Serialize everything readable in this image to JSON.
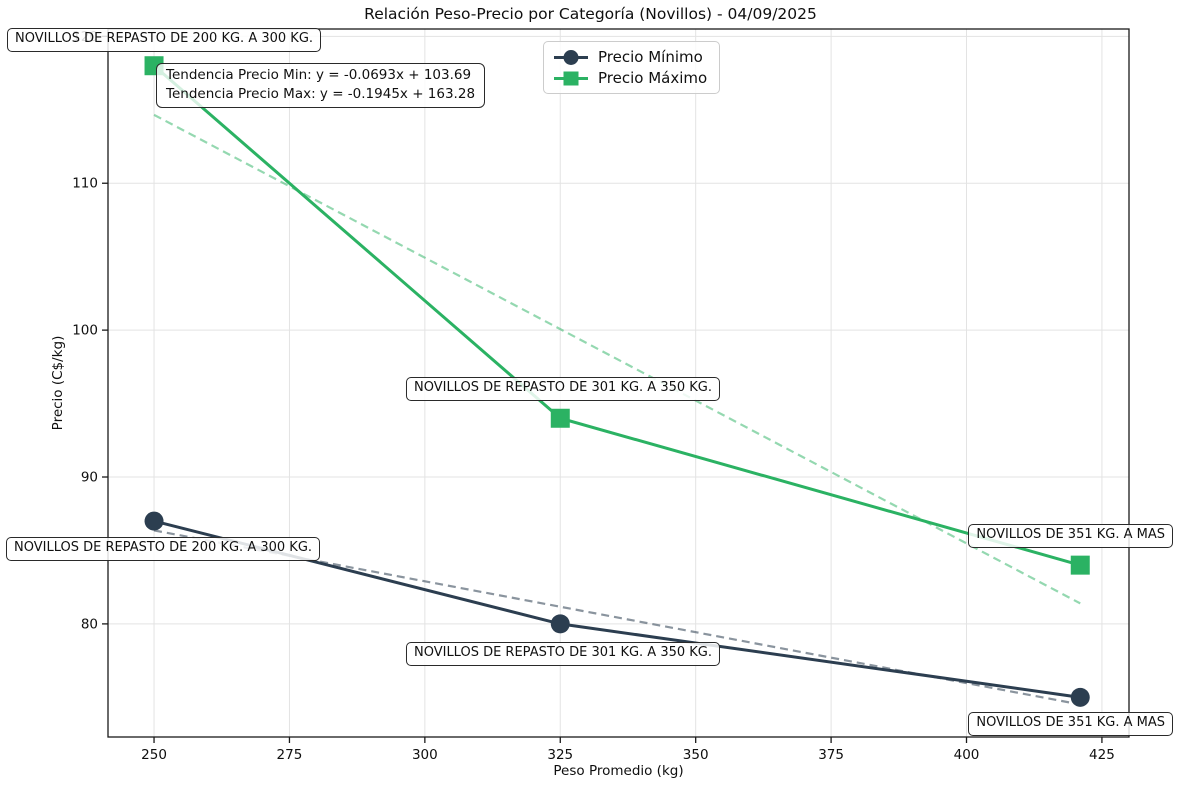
{
  "title": "Relación Peso-Precio por Categoría (Novillos) - 04/09/2025",
  "chart_data": {
    "type": "line",
    "title": "Relación Peso-Precio por Categoría (Novillos) - 04/09/2025",
    "xlabel": "Peso Promedio (kg)",
    "ylabel": "Precio (C$/kg)",
    "xlim": [
      241.5,
      430.0
    ],
    "ylim": [
      72.3,
      120.5
    ],
    "xticks": [
      250,
      275,
      300,
      325,
      350,
      375,
      400,
      425
    ],
    "yticks": [
      80,
      90,
      100,
      110,
      120
    ],
    "grid": true,
    "legend_position": "upper center",
    "categories": [
      "NOVILLOS DE REPASTO DE 200 KG. A 300 KG.",
      "NOVILLOS DE REPASTO DE 301 KG. A 350 KG.",
      "NOVILLOS DE 351 KG. A MAS"
    ],
    "x": [
      250,
      325,
      421
    ],
    "series": [
      {
        "name": "Precio Mínimo",
        "marker": "circle",
        "color": "#2c3e50",
        "x": [
          250,
          325,
          421
        ],
        "values": [
          87,
          80,
          75
        ],
        "point_labels": [
          "NOVILLOS DE REPASTO DE 200 KG. A 300 KG.",
          "NOVILLOS DE REPASTO DE 301 KG. A 350 KG.",
          "NOVILLOS DE 351 KG. A MAS"
        ]
      },
      {
        "name": "Precio Máximo",
        "marker": "square",
        "color": "#2bb263",
        "x": [
          250,
          325,
          421
        ],
        "values": [
          118,
          94,
          84
        ],
        "point_labels": [
          "NOVILLOS DE REPASTO DE 200 KG. A 300 KG.",
          "NOVILLOS DE REPASTO DE 301 KG. A 350 KG.",
          "NOVILLOS DE 351 KG. A MAS"
        ]
      }
    ],
    "trendlines": [
      {
        "name": "Tendencia Precio Min",
        "slope": -0.0693,
        "intercept": 103.69,
        "color": "#2c3e50",
        "opacity": 0.55,
        "x_range": [
          250,
          421
        ]
      },
      {
        "name": "Tendencia Precio Max",
        "slope": -0.1945,
        "intercept": 163.28,
        "color": "#2bb263",
        "opacity": 0.5,
        "x_range": [
          250,
          421
        ]
      }
    ],
    "annotation_box": {
      "line1": "Tendencia Precio Min: y = -0.0693x + 103.69",
      "line2": "Tendencia Precio Max: y = -0.1945x + 163.28"
    }
  }
}
